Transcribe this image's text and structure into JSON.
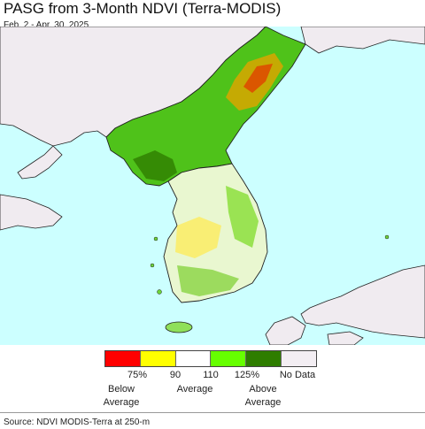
{
  "header": {
    "title": "PASG from 3-Month NDVI (Terra-MODIS)",
    "date_range": "Feb. 2 - Apr. 30, 2025"
  },
  "legend": {
    "swatches": [
      {
        "color": "#ff0000",
        "name": "red-swatch"
      },
      {
        "color": "#ffff00",
        "name": "yellow-swatch"
      },
      {
        "color": "#ffffff",
        "name": "white-swatch"
      },
      {
        "color": "#66ff00",
        "name": "light-green-swatch"
      },
      {
        "color": "#2e7d00",
        "name": "dark-green-swatch"
      },
      {
        "color": "#f3eef3",
        "name": "no-data-swatch"
      }
    ],
    "ticks": [
      "75%",
      "90",
      "110",
      "125%",
      "No Data"
    ],
    "categories": {
      "below_line1": "Below",
      "below_line2": "Average",
      "average": "Average",
      "above_line1": "Above",
      "above_line2": "Average"
    }
  },
  "footer": {
    "source": "Source: NDVI MODIS-Terra at 250-m"
  },
  "colors": {
    "sea": "#ccffff",
    "land_no_data": "#f0ebf0",
    "coast": "#222222"
  }
}
